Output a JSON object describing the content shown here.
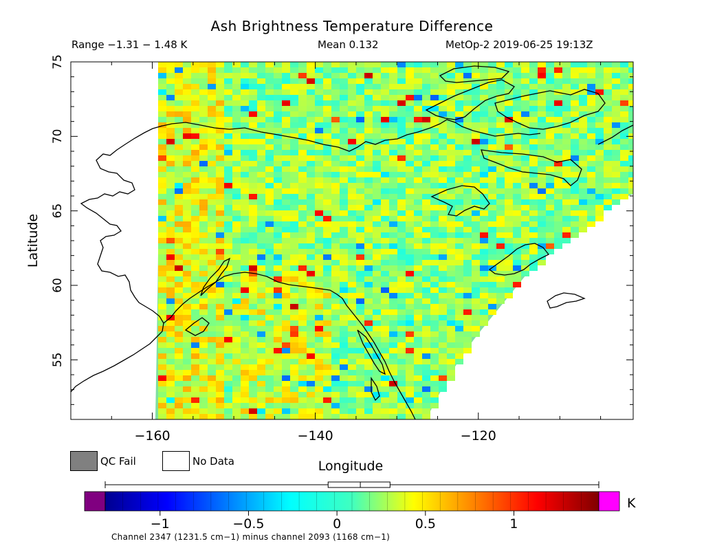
{
  "header": {
    "title": "Ash Brightness Temperature Difference",
    "range_text": "Range −1.31 − 1.48 K",
    "mean_text": "Mean 0.132",
    "source_text": "MetOp-2 2019-06-25 19:13Z"
  },
  "map": {
    "lon_range": [
      -170,
      -101
    ],
    "lat_range": [
      51,
      75
    ],
    "x_ticks": [
      {
        "value": -160,
        "label": "−160"
      },
      {
        "value": -140,
        "label": "−140"
      },
      {
        "value": -120,
        "label": "−120"
      }
    ],
    "y_ticks": [
      {
        "value": 55,
        "label": "55"
      },
      {
        "value": 60,
        "label": "60"
      },
      {
        "value": 65,
        "label": "65"
      },
      {
        "value": 70,
        "label": "70"
      },
      {
        "value": 75,
        "label": "75"
      }
    ],
    "xlabel": "Longitude",
    "ylabel": "Latitude"
  },
  "legend": {
    "qc_fail_label": "QC Fail",
    "no_data_label": "No Data",
    "qc_fail_color": "#808080",
    "no_data_color": "#ffffff"
  },
  "colorbar": {
    "range": [
      -1.31,
      1.48
    ],
    "ticks": [
      {
        "value": -1,
        "label": "−1"
      },
      {
        "value": -0.5,
        "label": "−0.5"
      },
      {
        "value": 0,
        "label": "0"
      },
      {
        "value": 0.5,
        "label": "0.5"
      },
      {
        "value": 1,
        "label": "1"
      }
    ],
    "unit": "K",
    "under_color": "#800080",
    "over_color": "#ff00ff",
    "box_plot": {
      "min": -1.31,
      "q1": -0.05,
      "median": 0.132,
      "q3": 0.3,
      "max": 1.48
    }
  },
  "footnote": "Channel 2347 (1231.5 cm−1) minus channel 2093 (1168 cm−1)"
}
